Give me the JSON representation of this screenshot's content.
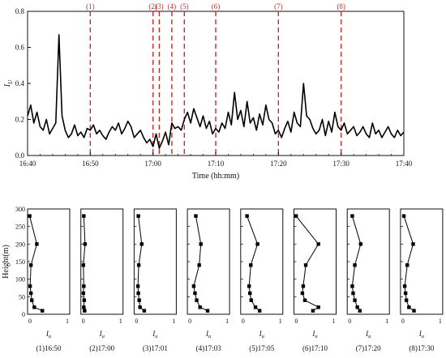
{
  "colors": {
    "axis": "#111111",
    "series": "#000000",
    "event_line": "#cc2a2a"
  },
  "chart_data": [
    {
      "type": "line",
      "title": "",
      "xlabel": "Time (hh:mm)",
      "ylabel": "I",
      "ylabel_sub": "U",
      "xlim": [
        0,
        60
      ],
      "ylim": [
        0,
        0.8
      ],
      "x_ticks": [
        "16:40",
        "16:50",
        "17:00",
        "17:10",
        "17:20",
        "17:30",
        "17:40"
      ],
      "y_ticks": [
        "0.0",
        "0.2",
        "0.4",
        "0.6",
        "0.8"
      ],
      "grid": false,
      "series": [
        {
          "x": [
            0,
            0.5,
            1,
            1.5,
            2,
            2.5,
            3,
            3.5,
            4,
            4.5,
            5,
            5.5,
            6,
            6.5,
            7,
            7.5,
            8,
            8.5,
            9,
            9.5,
            10,
            10.5,
            11,
            11.5,
            12,
            12.5,
            13,
            13.5,
            14,
            14.5,
            15,
            15.5,
            16,
            16.5,
            17,
            17.5,
            18,
            18.5,
            19,
            19.5,
            20,
            20.5,
            21,
            21.5,
            22,
            22.5,
            23,
            23.5,
            24,
            24.5,
            25,
            25.5,
            26,
            26.5,
            27,
            27.5,
            28,
            28.5,
            29,
            29.5,
            30,
            30.5,
            31,
            31.5,
            32,
            32.5,
            33,
            33.5,
            34,
            34.5,
            35,
            35.5,
            36,
            36.5,
            37,
            37.5,
            38,
            38.5,
            39,
            39.5,
            40,
            40.5,
            41,
            41.5,
            42,
            42.5,
            43,
            43.5,
            44,
            44.5,
            45,
            45.5,
            46,
            46.5,
            47,
            47.5,
            48,
            48.5,
            49,
            49.5,
            50,
            50.5,
            51,
            51.5,
            52,
            52.5,
            53,
            53.5,
            54,
            54.5,
            55,
            55.5,
            56,
            56.5,
            57,
            57.5,
            58,
            58.5,
            59,
            59.5,
            60
          ],
          "values": [
            0.22,
            0.28,
            0.18,
            0.24,
            0.16,
            0.14,
            0.2,
            0.12,
            0.15,
            0.18,
            0.67,
            0.22,
            0.14,
            0.1,
            0.12,
            0.17,
            0.11,
            0.13,
            0.1,
            0.15,
            0.14,
            0.17,
            0.12,
            0.14,
            0.11,
            0.09,
            0.13,
            0.16,
            0.14,
            0.18,
            0.12,
            0.15,
            0.19,
            0.16,
            0.1,
            0.12,
            0.14,
            0.1,
            0.07,
            0.09,
            0.05,
            0.12,
            0.04,
            0.08,
            0.13,
            0.06,
            0.18,
            0.15,
            0.16,
            0.14,
            0.2,
            0.24,
            0.18,
            0.26,
            0.21,
            0.16,
            0.22,
            0.15,
            0.19,
            0.12,
            0.15,
            0.13,
            0.18,
            0.15,
            0.24,
            0.17,
            0.35,
            0.2,
            0.25,
            0.16,
            0.3,
            0.18,
            0.21,
            0.14,
            0.23,
            0.17,
            0.28,
            0.2,
            0.18,
            0.12,
            0.14,
            0.1,
            0.15,
            0.19,
            0.13,
            0.24,
            0.18,
            0.16,
            0.4,
            0.22,
            0.2,
            0.15,
            0.12,
            0.14,
            0.2,
            0.11,
            0.19,
            0.13,
            0.24,
            0.16,
            0.14,
            0.18,
            0.12,
            0.14,
            0.16,
            0.11,
            0.13,
            0.16,
            0.12,
            0.1,
            0.18,
            0.12,
            0.14,
            0.1,
            0.13,
            0.16,
            0.12,
            0.1,
            0.14,
            0.11,
            0.13
          ]
        }
      ],
      "event_markers": [
        {
          "label": "(1)",
          "x": 10
        },
        {
          "label": "(2)",
          "x": 20
        },
        {
          "label": "(3)",
          "x": 21
        },
        {
          "label": "(4)",
          "x": 23
        },
        {
          "label": "(5)",
          "x": 25
        },
        {
          "label": "(6)",
          "x": 30
        },
        {
          "label": "(7)",
          "x": 40
        },
        {
          "label": "(8)",
          "x": 50
        }
      ]
    },
    {
      "type": "line",
      "title": "",
      "ylabel": "Height(m)",
      "xlabel": "I",
      "xlabel_sub": "u",
      "xlim": [
        0,
        1
      ],
      "ylim": [
        0,
        300
      ],
      "x_ticks": [
        "0",
        "1"
      ],
      "y_ticks": [
        "0",
        "50",
        "100",
        "150",
        "200",
        "250",
        "300"
      ],
      "heights": [
        280,
        200,
        140,
        80,
        60,
        40,
        20,
        10
      ],
      "panels": [
        {
          "label": "(1)16:50",
          "values": [
            0.05,
            0.22,
            0.08,
            0.06,
            0.08,
            0.1,
            0.16,
            0.35
          ]
        },
        {
          "label": "(2)17:00",
          "values": [
            0.07,
            0.1,
            0.06,
            0.07,
            0.06,
            0.08,
            0.07,
            0.09
          ]
        },
        {
          "label": "(3)17:01",
          "values": [
            0.1,
            0.18,
            0.11,
            0.09,
            0.1,
            0.12,
            0.14,
            0.24
          ]
        },
        {
          "label": "(4)17:03",
          "values": [
            0.2,
            0.32,
            0.28,
            0.15,
            0.18,
            0.22,
            0.3,
            0.48
          ]
        },
        {
          "label": "(5)17:05",
          "values": [
            0.15,
            0.4,
            0.24,
            0.2,
            0.22,
            0.25,
            0.35,
            0.45
          ]
        },
        {
          "label": "(6)17:10",
          "values": [
            0.05,
            0.58,
            0.28,
            0.22,
            0.2,
            0.26,
            0.58,
            0.45
          ]
        },
        {
          "label": "(7)17:20",
          "values": [
            0.12,
            0.32,
            0.18,
            0.12,
            0.14,
            0.18,
            0.24,
            0.3
          ]
        },
        {
          "label": "(8)17:30",
          "values": [
            0.08,
            0.3,
            0.16,
            0.1,
            0.12,
            0.14,
            0.2,
            0.32
          ]
        }
      ]
    }
  ]
}
